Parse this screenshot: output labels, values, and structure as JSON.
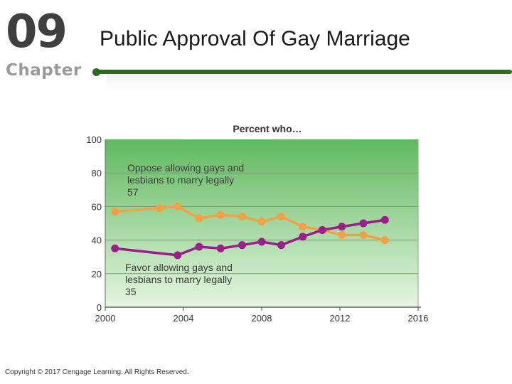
{
  "header": {
    "chapter_number": "09",
    "chapter_word": "Chapter",
    "title": "Public Approval Of Gay Marriage"
  },
  "footer": {
    "copyright": "Copyright © 2017 Cengage Learning. All Rights Reserved."
  },
  "colors": {
    "oppose": "#f5a044",
    "favor": "#9a1f8a",
    "plot_top": "#5fb95f",
    "plot_bottom": "#e6f5e1",
    "rule": "#2f6a1e"
  },
  "chart_data": {
    "type": "line",
    "title": "Percent who…",
    "xlabel": "",
    "ylabel": "",
    "xlim": [
      2000,
      2016
    ],
    "ylim": [
      0,
      100
    ],
    "x_ticks": [
      "2000",
      "2004",
      "2008",
      "2012",
      "2016"
    ],
    "y_ticks": [
      "0",
      "20",
      "40",
      "60",
      "80",
      "100"
    ],
    "grid": true,
    "series": [
      {
        "name": "Oppose",
        "color_key": "oppose",
        "x": [
          2000.5,
          2002.8,
          2003.7,
          2004.8,
          2005.9,
          2007.0,
          2008.0,
          2009.0,
          2010.1,
          2011.1,
          2012.1,
          2013.2,
          2014.3
        ],
        "y": [
          57,
          59,
          60,
          53,
          55,
          54,
          51,
          54,
          48,
          46,
          43,
          43,
          40
        ],
        "annotation": [
          "Oppose allowing gays and",
          "lesbians to marry legally",
          "57"
        ]
      },
      {
        "name": "Favor",
        "color_key": "favor",
        "x": [
          2000.5,
          2003.7,
          2004.8,
          2005.9,
          2007.0,
          2008.0,
          2009.0,
          2010.1,
          2011.1,
          2012.1,
          2013.2,
          2014.3
        ],
        "y": [
          35,
          31,
          36,
          35,
          37,
          39,
          37,
          42,
          46,
          48,
          50,
          52
        ],
        "annotation": [
          "Favor allowing gays and",
          "lesbians to marry legally",
          "35"
        ]
      }
    ]
  }
}
